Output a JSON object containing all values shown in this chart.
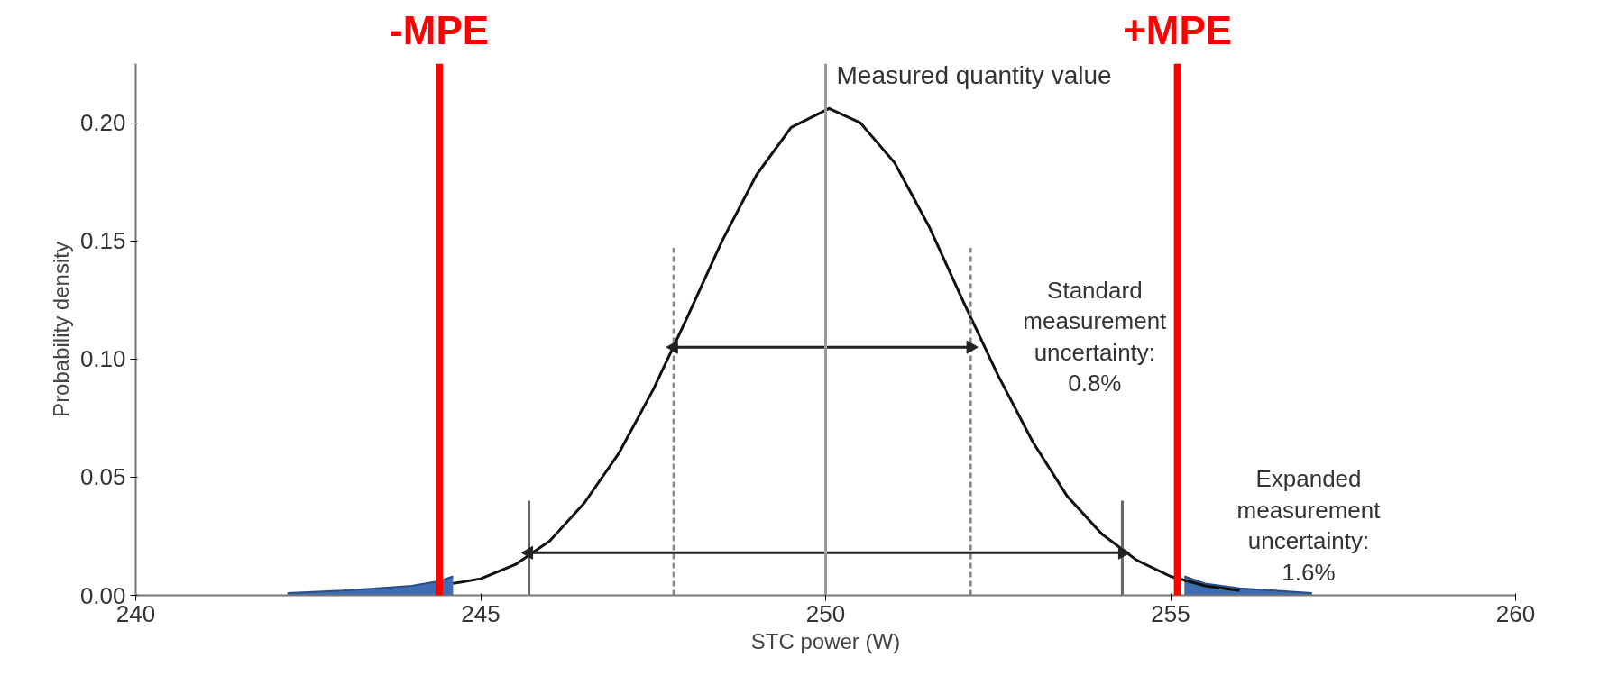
{
  "chart_data": {
    "type": "line",
    "xlabel": "STC power (W)",
    "ylabel": "Probability density",
    "xlim": [
      240,
      260
    ],
    "xticks": [
      240,
      245,
      250,
      255,
      260
    ],
    "ylim": [
      0,
      0.225
    ],
    "yticks": [
      {
        "value": 0,
        "label": "0.00"
      },
      {
        "value": 0.05,
        "label": "0.05"
      },
      {
        "value": 0.1,
        "label": "0.10"
      },
      {
        "value": 0.15,
        "label": "0.15"
      },
      {
        "value": 0.2,
        "label": "0.20"
      }
    ],
    "grid": false,
    "marker": "none",
    "line_style": "solid",
    "series": [
      {
        "color": "#111111",
        "x": [
          244.6,
          245,
          245.5,
          246,
          246.5,
          247,
          247.5,
          248,
          248.5,
          249,
          249.5,
          250.05,
          250.5,
          251,
          251.5,
          252,
          252.5,
          253,
          253.5,
          254,
          254.5,
          255,
          255.5,
          256
        ],
        "values": [
          0.005,
          0.007,
          0.013,
          0.023,
          0.039,
          0.06,
          0.087,
          0.118,
          0.15,
          0.178,
          0.198,
          0.206,
          0.2,
          0.183,
          0.156,
          0.124,
          0.093,
          0.065,
          0.042,
          0.026,
          0.015,
          0.008,
          0.004,
          0.002
        ]
      },
      {
        "type": "area",
        "color": "#3f6db3",
        "x": [
          242.2,
          243,
          243.5,
          244,
          244.4,
          244.6
        ],
        "values": [
          0.001,
          0.002,
          0.003,
          0.004,
          0.006,
          0.008
        ]
      },
      {
        "type": "area",
        "color": "#3f6db3",
        "x": [
          255.2,
          255.5,
          256,
          256.5,
          257.05
        ],
        "values": [
          0.008,
          0.005,
          0.003,
          0.002,
          0.001
        ]
      },
      {
        "type": "line",
        "color": "#888888",
        "line_style": "dashed",
        "x": [
          247.8,
          247.8
        ],
        "values": [
          0,
          0.147
        ]
      },
      {
        "type": "line",
        "color": "#888888",
        "line_style": "dashed",
        "x": [
          252.1,
          252.1
        ],
        "values": [
          0,
          0.147
        ]
      },
      {
        "type": "line",
        "color": "#666666",
        "x": [
          245.7,
          245.7
        ],
        "values": [
          0,
          0.04
        ]
      },
      {
        "type": "line",
        "color": "#666666",
        "x": [
          254.3,
          254.3
        ],
        "values": [
          0,
          0.04
        ]
      },
      {
        "type": "line",
        "color": "#222222",
        "marker": "triangle",
        "x": [
          247.8,
          252.1
        ],
        "values": [
          0.105,
          0.105
        ]
      },
      {
        "type": "line",
        "color": "#222222",
        "marker": "triangle",
        "x": [
          245.7,
          254.3
        ],
        "values": [
          0.018,
          0.018
        ]
      }
    ],
    "ref_lines": [
      {
        "axis": "x",
        "value": 250.0,
        "label": "Measured quantity value",
        "color": "#999999"
      },
      {
        "axis": "x",
        "value": 244.4,
        "label": "-MPE",
        "color": "#ff0000"
      },
      {
        "axis": "x",
        "value": 255.1,
        "label": "+MPE",
        "color": "#ff0000"
      }
    ],
    "annotations": [
      "Standard\nmeasurement\nuncertainty:\n0.8%",
      "Expanded\nmeasurement\nuncertainty:\n1.6%"
    ]
  }
}
